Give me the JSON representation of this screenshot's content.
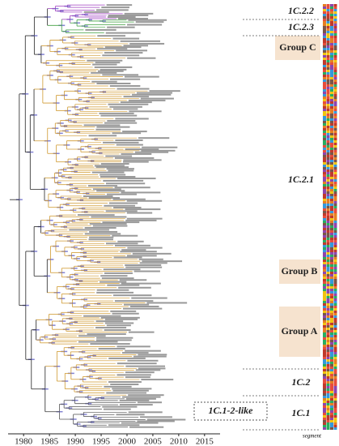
{
  "clades": [
    {
      "label": "1C.2.2"
    },
    {
      "label": "1C.2.3"
    },
    {
      "label": "1C.2.1"
    },
    {
      "label": "1C.2"
    },
    {
      "label": "1C.1"
    }
  ],
  "groups": [
    {
      "label": "Group C"
    },
    {
      "label": "Group B"
    },
    {
      "label": "Group A"
    }
  ],
  "like_label": "1C.1-2-like",
  "segment_label": "segment",
  "axis": {
    "lim": [
      1977,
      2018
    ],
    "ticks": [
      1980,
      1985,
      1990,
      1995,
      2000,
      2005,
      2010,
      2015
    ]
  }
}
